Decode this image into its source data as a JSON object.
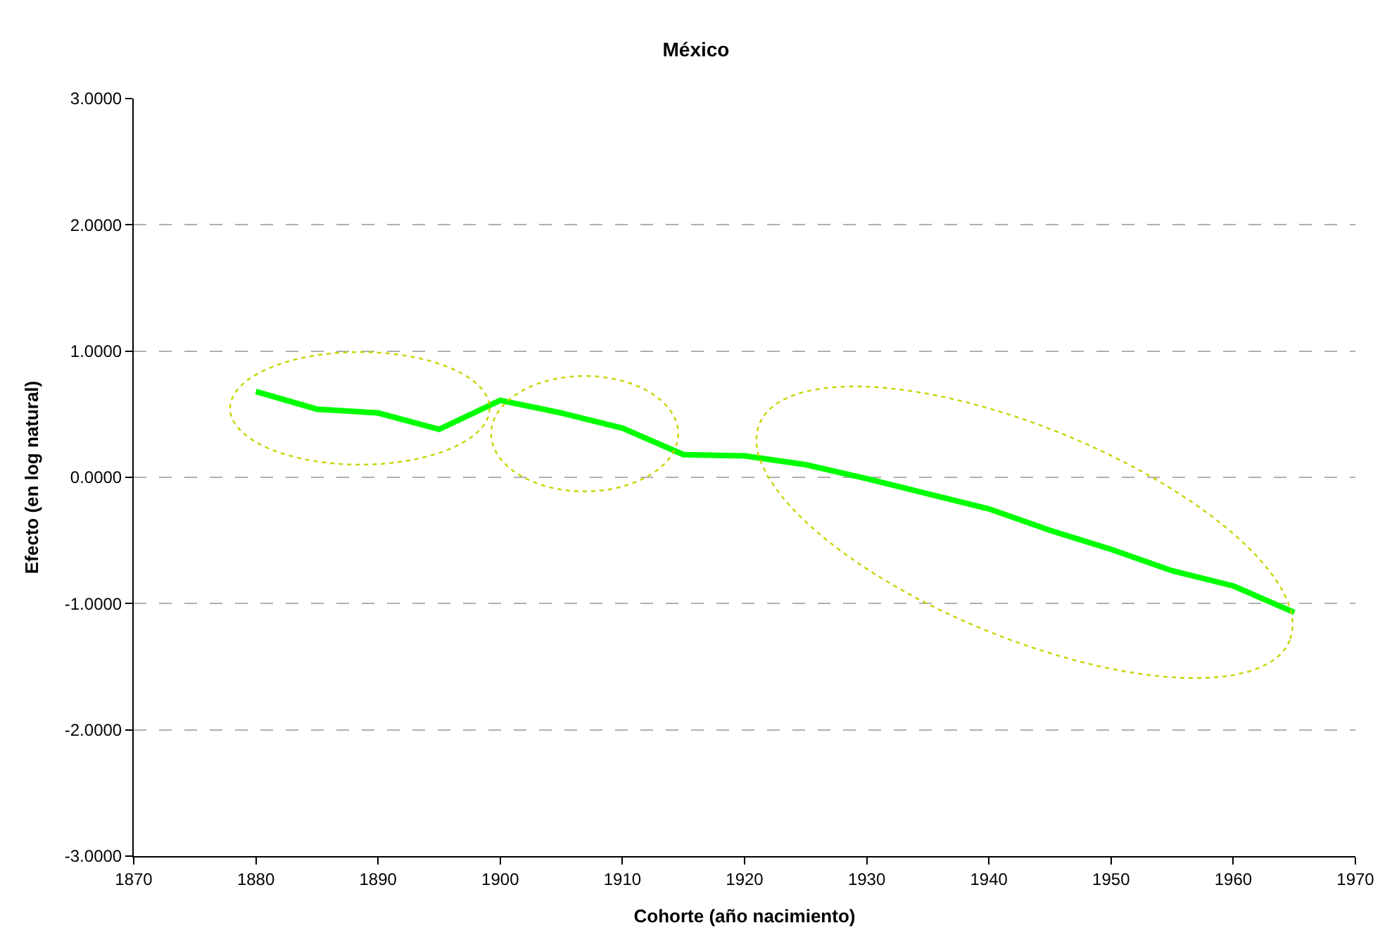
{
  "chart_data": {
    "type": "line",
    "title": "México",
    "xlabel": "Cohorte (año nacimiento)",
    "ylabel": "Efecto (en log natural)",
    "x": [
      1880,
      1885,
      1890,
      1895,
      1900,
      1905,
      1910,
      1915,
      1920,
      1925,
      1930,
      1935,
      1940,
      1945,
      1950,
      1955,
      1960,
      1965
    ],
    "series": [
      {
        "color": "#00ff00",
        "values": [
          0.68,
          0.54,
          0.51,
          0.38,
          0.61,
          0.51,
          0.39,
          0.18,
          0.17,
          0.1,
          -0.01,
          -0.13,
          -0.25,
          -0.42,
          -0.57,
          -0.74,
          -0.86,
          -1.07
        ]
      }
    ],
    "xlim": [
      1870,
      1970
    ],
    "xticks": [
      1870,
      1880,
      1890,
      1900,
      1910,
      1920,
      1930,
      1940,
      1950,
      1960,
      1970
    ],
    "ylim": [
      -3,
      3
    ],
    "yticks": [
      {
        "value": -3,
        "label": "-3.0000"
      },
      {
        "value": -2,
        "label": "-2.0000"
      },
      {
        "value": -1,
        "label": "-1.0000"
      },
      {
        "value": 0,
        "label": "0.0000"
      },
      {
        "value": 1,
        "label": "1.0000"
      },
      {
        "value": 2,
        "label": "2.0000"
      },
      {
        "value": 3,
        "label": "3.0000"
      }
    ],
    "grid": "y",
    "marker": "none",
    "line_style": "solid"
  }
}
